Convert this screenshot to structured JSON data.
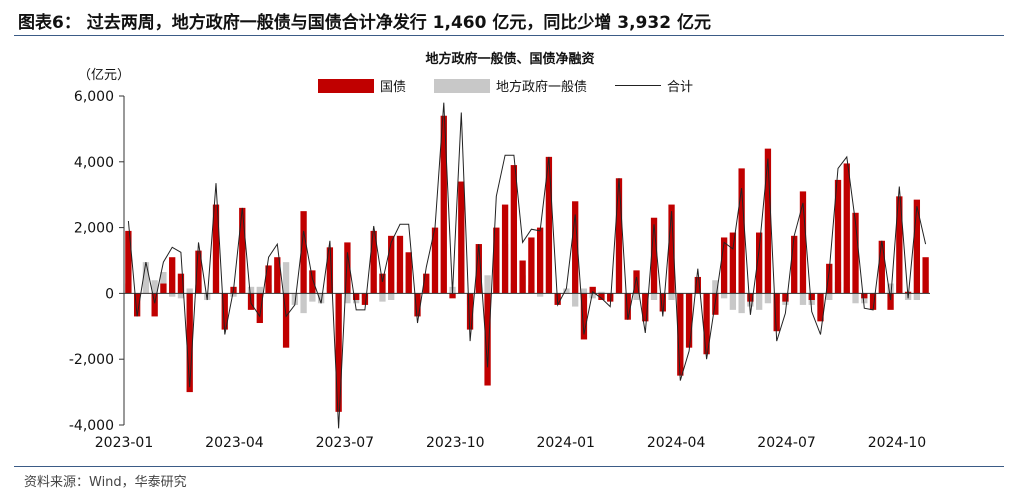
{
  "figure_title": "图表6：  过去两周，地方政府一般债与国债合计净发行 1,460 亿元，同比少增 3,932 亿元",
  "source_text": "资料来源：Wind，华泰研究",
  "colors": {
    "national": "#c00000",
    "local": "#c8c8c8",
    "total": "#222222",
    "rule": "#3b5b86"
  },
  "chart_data": {
    "type": "bar",
    "title": "地方政府一般债、国债净融资",
    "ylabel": "（亿元）",
    "ylim": [
      -4000,
      6000
    ],
    "yticks": [
      "6,000",
      "4,000",
      "2,000",
      "0",
      "-2,000",
      "-4,000"
    ],
    "xticks": [
      "2023-01",
      "2023-04",
      "2023-07",
      "2023-10",
      "2024-01",
      "2024-04",
      "2024-07",
      "2024-10"
    ],
    "legend_position": "top-center",
    "series": [
      {
        "name": "国债",
        "color": "#c00000",
        "values": [
          1900,
          -700,
          0,
          -700,
          300,
          1100,
          600,
          -3000,
          1300,
          0,
          2700,
          -1100,
          200,
          2600,
          -500,
          -900,
          850,
          1100,
          -1650,
          0,
          2500,
          700,
          0,
          1400,
          -3600,
          1550,
          -200,
          -350,
          1900,
          600,
          1750,
          1750,
          1250,
          -700,
          600,
          2000,
          5400,
          -150,
          3400,
          -1100,
          1500,
          -2800,
          2000,
          2700,
          3900,
          1000,
          1700,
          2000,
          4150,
          -350,
          0,
          2800,
          -1400,
          200,
          -200,
          -250,
          3500,
          -800,
          700,
          -850,
          2300,
          -550,
          2700,
          -2500,
          -1650,
          500,
          -1850,
          -650,
          1700,
          1850,
          3800,
          -250,
          1850,
          4400,
          -1150,
          -250,
          1750,
          3100,
          -200,
          -850,
          900,
          3450,
          3950,
          2450,
          -150,
          -500,
          1600,
          -500,
          2950,
          50,
          2850,
          1100
        ],
        "gray": [
          300,
          0,
          950,
          400,
          650,
          -100,
          -150,
          150,
          250,
          -200,
          400,
          -150,
          -100,
          0,
          200,
          200,
          250,
          400,
          950,
          -350,
          -600,
          -250,
          -300,
          200,
          -500,
          -300,
          -300,
          -150,
          150,
          -250,
          -200,
          350,
          850,
          -200,
          200,
          0,
          0,
          200,
          1200,
          -350,
          0,
          550,
          950,
          1500,
          300,
          550,
          250,
          -100,
          0,
          0,
          150,
          -400,
          150,
          -150,
          50,
          -150,
          0,
          0,
          -200,
          -350,
          -200,
          -150,
          -200,
          -150,
          -100,
          250,
          -150,
          400,
          -150,
          -500,
          -600,
          -400,
          -500,
          -300,
          -300,
          -350,
          0,
          -350,
          -350,
          -400,
          -200,
          350,
          200,
          -300,
          -300,
          0,
          0,
          300,
          300,
          -200,
          -200,
          400
        ],
        "total": [
          2200,
          -700,
          950,
          -300,
          950,
          1400,
          1250,
          -2850,
          1550,
          -200,
          3350,
          -1250,
          100,
          2600,
          -300,
          -700,
          1100,
          1500,
          -700,
          -350,
          1900,
          450,
          -300,
          1600,
          -4100,
          1250,
          -500,
          -500,
          2050,
          350,
          1550,
          2100,
          2100,
          -900,
          800,
          2000,
          5800,
          0,
          5500,
          -1450,
          1500,
          -2250,
          2950,
          4200,
          4200,
          1550,
          1950,
          1900,
          4150,
          -350,
          150,
          2400,
          -1250,
          50,
          -150,
          -400,
          3500,
          -800,
          500,
          -1200,
          2100,
          -700,
          2500,
          -2650,
          -1750,
          750,
          -2000,
          -250,
          1550,
          1350,
          3200,
          -650,
          1350,
          4100,
          -1450,
          -600,
          1750,
          2750,
          -550,
          -1250,
          700,
          3800,
          4150,
          2150,
          -450,
          -500,
          1600,
          -200,
          3250,
          -150,
          2650,
          1500
        ]
      },
      {
        "name": "地方政府一般债",
        "color": "#c8c8c8"
      },
      {
        "name": "合计",
        "color": "#222222"
      }
    ]
  }
}
